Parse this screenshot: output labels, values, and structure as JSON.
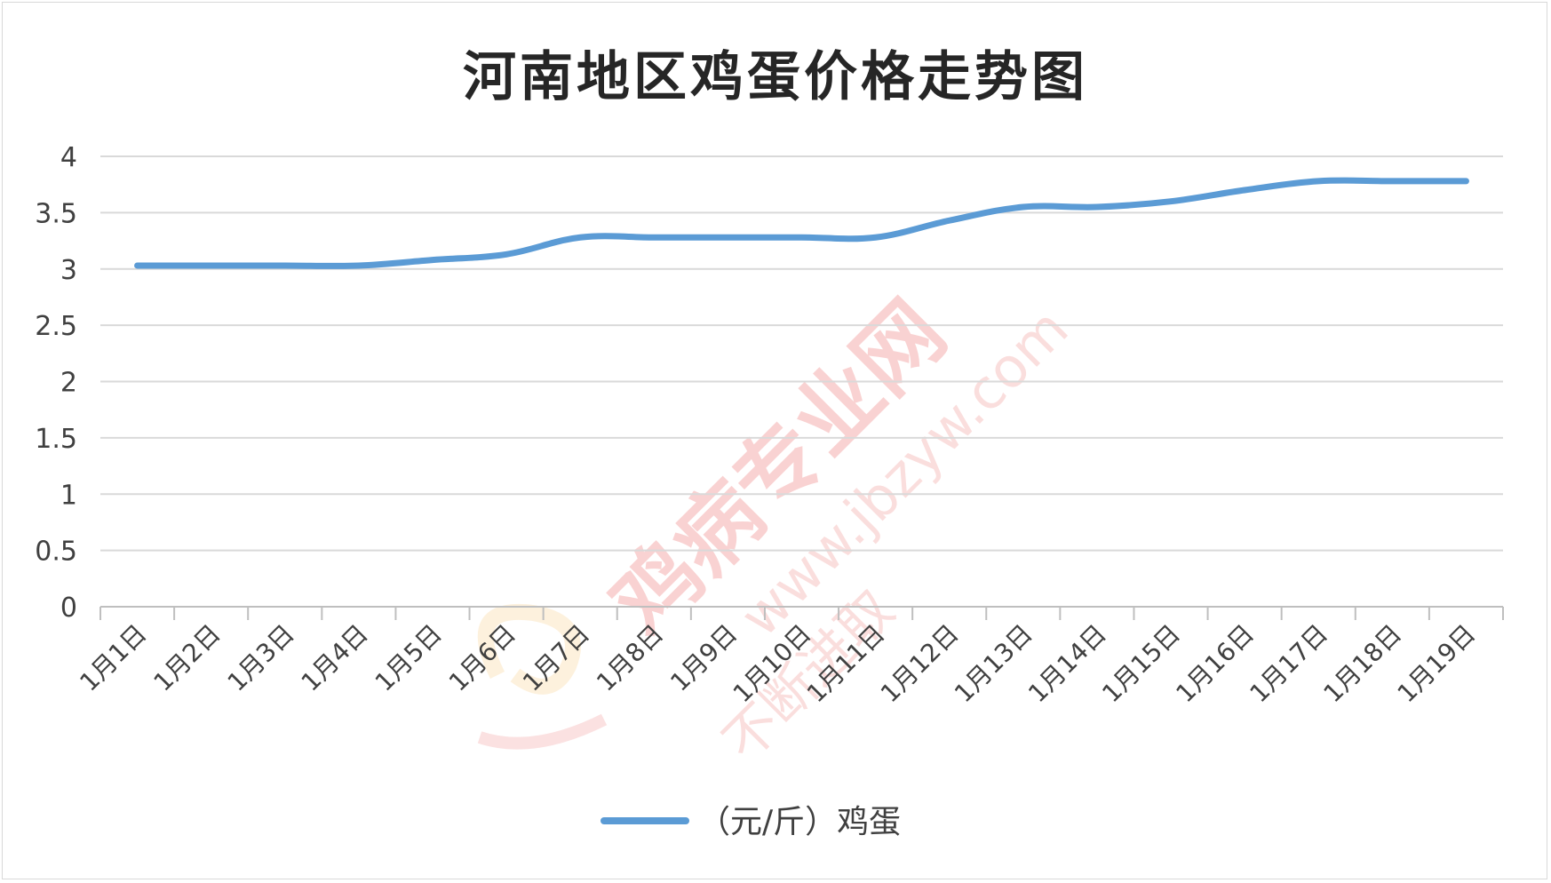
{
  "chart_data": {
    "type": "line",
    "title": "河南地区鸡蛋价格走势图",
    "categories": [
      "1月1日",
      "1月2日",
      "1月3日",
      "1月4日",
      "1月5日",
      "1月6日",
      "1月7日",
      "1月8日",
      "1月9日",
      "1月10日",
      "1月11日",
      "1月12日",
      "1月13日",
      "1月14日",
      "1月15日",
      "1月16日",
      "1月17日",
      "1月18日",
      "1月19日"
    ],
    "series": [
      {
        "name": "（元/斤）鸡蛋",
        "values": [
          3.03,
          3.03,
          3.03,
          3.03,
          3.08,
          3.13,
          3.28,
          3.28,
          3.28,
          3.28,
          3.28,
          3.43,
          3.55,
          3.55,
          3.6,
          3.7,
          3.78,
          3.78,
          3.78
        ],
        "color": "#5b9bd5"
      }
    ],
    "yticks": [
      "0",
      "0.5",
      "1",
      "1.5",
      "2",
      "2.5",
      "3",
      "3.5",
      "4"
    ],
    "ylim": [
      0,
      4
    ],
    "grid": true,
    "legend": "bottom"
  },
  "watermark": {
    "main": "鸡病专业网",
    "url": "www.jbzyw.com",
    "script": "不断进取"
  }
}
